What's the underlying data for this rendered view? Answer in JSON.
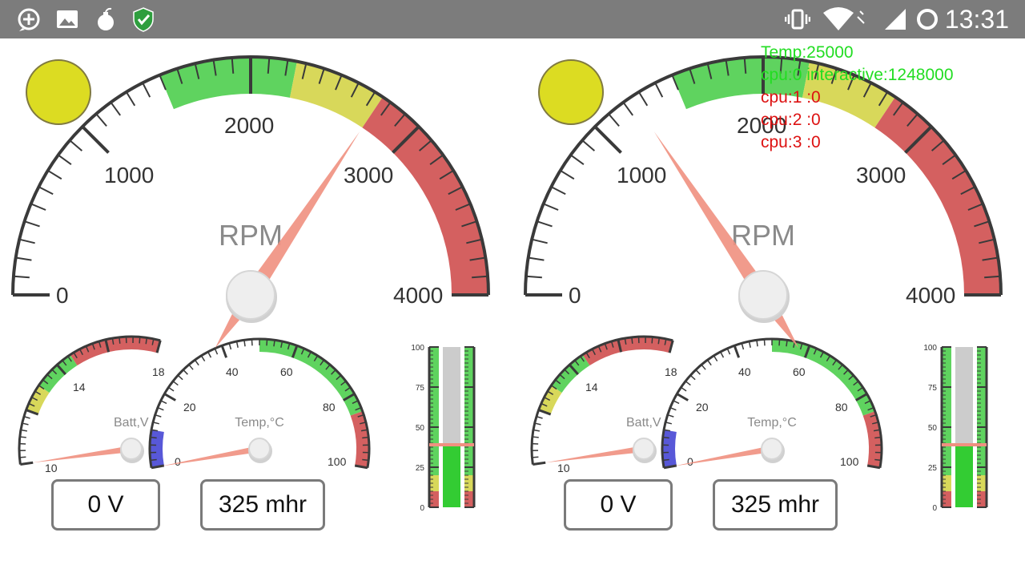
{
  "status_bar": {
    "time": "13:31",
    "left_icons": [
      "add-circle-icon",
      "image-icon",
      "bomb-icon",
      "shield-check-icon"
    ],
    "right_icons": [
      "vibrate-icon",
      "wifi-icon",
      "cell-signal-icon",
      "battery-ring-icon"
    ],
    "background": "#7c7c7c"
  },
  "overlay": {
    "temp": "Temp:25000",
    "cpu0": "cpu:0 interactive:1248000",
    "cpu1": "cpu:1 :0",
    "cpu2": "cpu:2 :0",
    "cpu3": "cpu:3 :0"
  },
  "colors": {
    "green": "#5fd35f",
    "yellow": "#d8d85a",
    "red": "#d46060",
    "blue": "#5858d8",
    "needle": "#f09080",
    "lamp": "#dcdc22",
    "bar_fill": "#33cc33",
    "bar_track": "#cccccc"
  },
  "panels": [
    {
      "lamp_color": "#dcdc22",
      "rpm": {
        "label": "RPM",
        "ticks": [
          "0",
          "1000",
          "2000",
          "3000",
          "4000"
        ],
        "min": 0,
        "max": 4000,
        "value": 2750
      },
      "batt": {
        "label": "Batt,V",
        "ticks": [
          "10",
          "14",
          "18"
        ],
        "min": 10,
        "max": 18,
        "value": 10
      },
      "temp": {
        "label": "Temp,°C",
        "ticks": [
          "0",
          "20",
          "40",
          "60",
          "80",
          "100"
        ],
        "min": 0,
        "max": 100,
        "value": 0
      },
      "bar": {
        "ticks": [
          "100",
          "75",
          "50",
          "25",
          "0"
        ],
        "value": 39
      },
      "readouts": {
        "batt": "0 V",
        "hours": "325 mhr"
      }
    },
    {
      "lamp_color": "#dcdc22",
      "rpm": {
        "label": "RPM",
        "ticks": [
          "0",
          "1000",
          "2000",
          "3000",
          "4000"
        ],
        "min": 0,
        "max": 4000,
        "value": 1250
      },
      "batt": {
        "label": "Batt,V",
        "ticks": [
          "10",
          "14",
          "18"
        ],
        "min": 10,
        "max": 18,
        "value": 10
      },
      "temp": {
        "label": "Temp,°C",
        "ticks": [
          "0",
          "20",
          "40",
          "60",
          "80",
          "100"
        ],
        "min": 0,
        "max": 100,
        "value": 0
      },
      "bar": {
        "ticks": [
          "100",
          "75",
          "50",
          "25",
          "0"
        ],
        "value": 39
      },
      "readouts": {
        "batt": "0 V",
        "hours": "325 mhr"
      }
    }
  ]
}
